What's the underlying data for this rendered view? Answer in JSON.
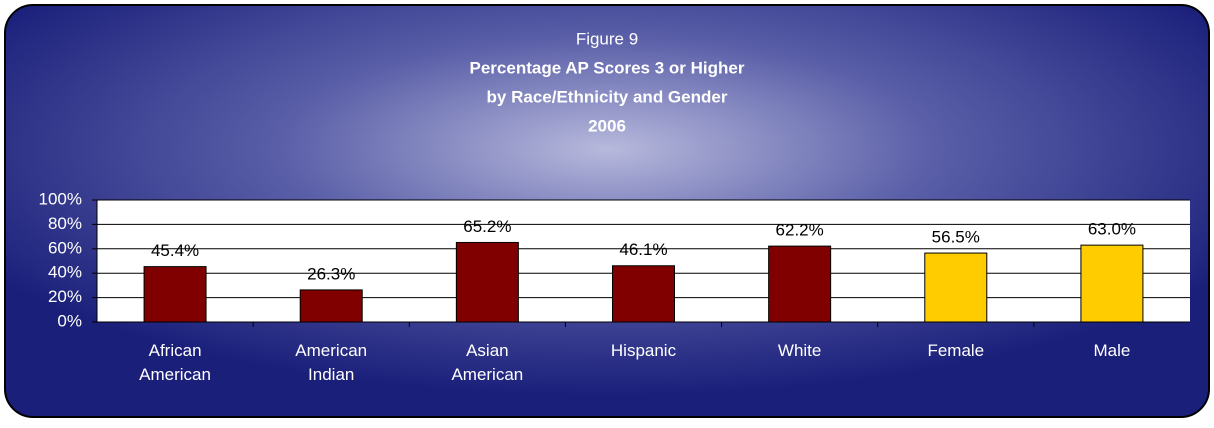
{
  "chart_data": {
    "type": "bar",
    "title": [
      "Figure 9",
      "Percentage AP Scores 3 or Higher",
      "by Race/Ethnicity and Gender",
      "2006"
    ],
    "categories": [
      "African American",
      "American Indian",
      "Asian American",
      "Hispanic",
      "White",
      "Female",
      "Male"
    ],
    "values": [
      45.4,
      26.3,
      65.2,
      46.1,
      62.2,
      56.5,
      63.0
    ],
    "value_labels": [
      "45.4%",
      "26.3%",
      "65.2%",
      "46.1%",
      "62.2%",
      "56.5%",
      "63.0%"
    ],
    "colors": [
      "#800000",
      "#800000",
      "#800000",
      "#800000",
      "#800000",
      "#ffcc00",
      "#ffcc00"
    ],
    "ylim": [
      0,
      100
    ],
    "yticks": [
      {
        "value": 0,
        "label": "0%"
      },
      {
        "value": 20,
        "label": "20%"
      },
      {
        "value": 40,
        "label": "40%"
      },
      {
        "value": 60,
        "label": "60%"
      },
      {
        "value": 80,
        "label": "80%"
      },
      {
        "value": 100,
        "label": "100%"
      }
    ],
    "grid": true
  }
}
